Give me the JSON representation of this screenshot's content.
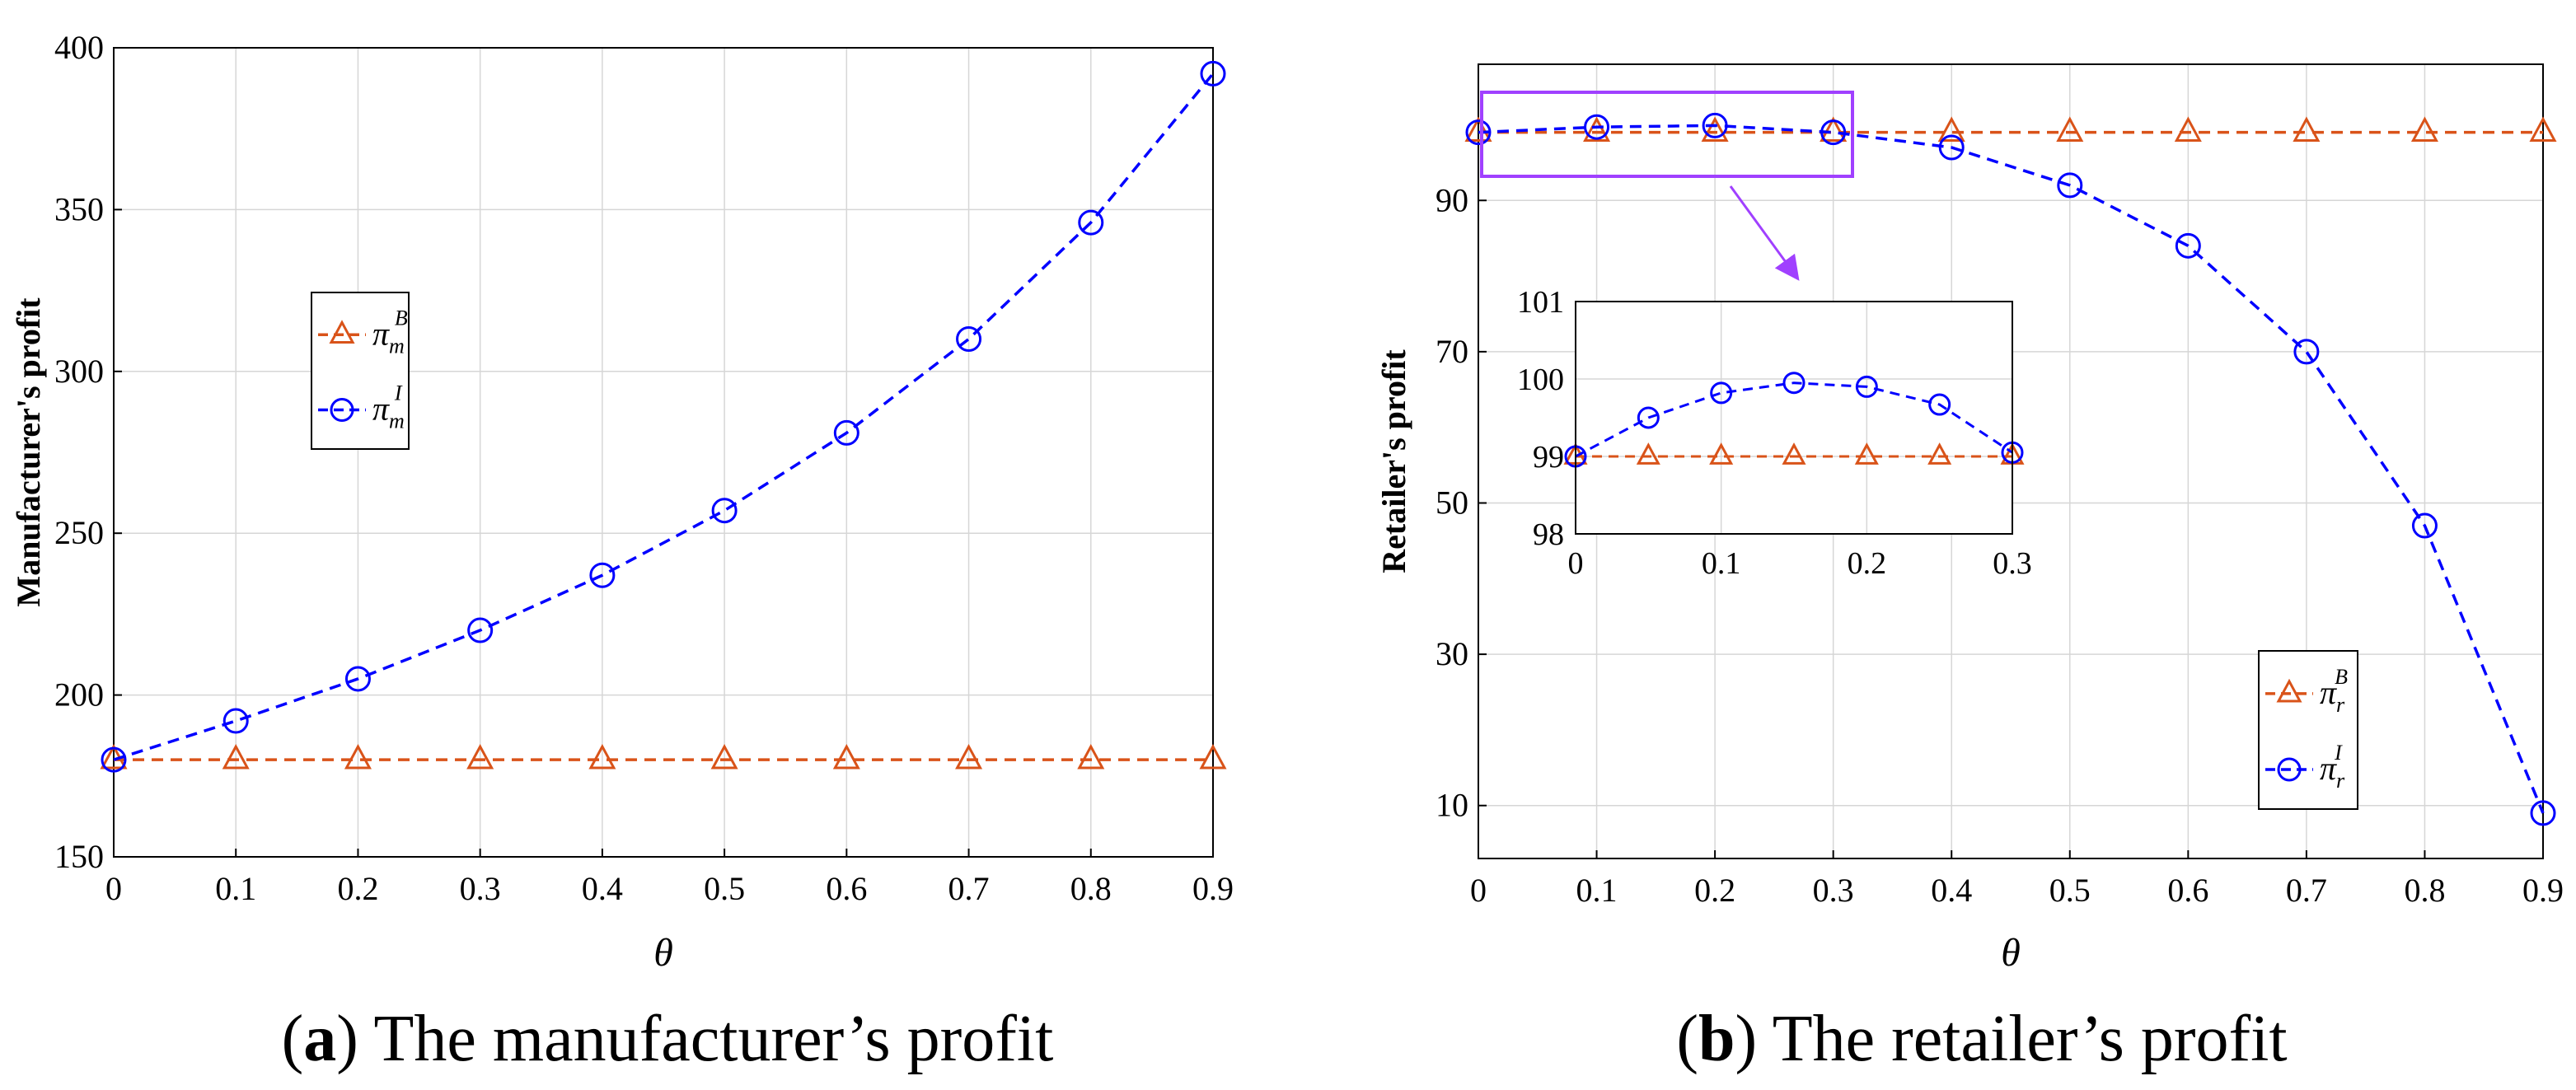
{
  "chart_data": [
    {
      "id": "a",
      "type": "line",
      "caption_letter": "a",
      "caption_text": "The manufacturer’s profit",
      "xlabel": "θ",
      "ylabel": "Manufacturer's  profit",
      "xlim": [
        0,
        0.9
      ],
      "ylim": [
        150,
        400
      ],
      "xticks": [
        0,
        0.1,
        0.2,
        0.3,
        0.4,
        0.5,
        0.6,
        0.7,
        0.8,
        0.9
      ],
      "yticks": [
        150,
        200,
        250,
        300,
        350,
        400
      ],
      "grid": true,
      "x": [
        0,
        0.1,
        0.2,
        0.3,
        0.4,
        0.5,
        0.6,
        0.7,
        0.8,
        0.9
      ],
      "series": [
        {
          "key": "B",
          "sym": "π",
          "sub": "m",
          "sup": "B",
          "color": "#d95319",
          "marker": "triangle",
          "values": [
            180,
            180,
            180,
            180,
            180,
            180,
            180,
            180,
            180,
            180
          ]
        },
        {
          "key": "I",
          "sym": "π",
          "sub": "m",
          "sup": "I",
          "color": "#0000ff",
          "marker": "circle",
          "values": [
            180,
            192,
            205,
            220,
            237,
            257,
            281,
            310,
            346,
            392
          ]
        }
      ],
      "legend_position": "center-left"
    },
    {
      "id": "b",
      "type": "line",
      "caption_letter": "b",
      "caption_text": "The retailer’s profit",
      "xlabel": "θ",
      "ylabel": "Retailer's  profit",
      "xlim": [
        0,
        0.9
      ],
      "ylim": [
        3,
        108
      ],
      "xticks": [
        0,
        0.1,
        0.2,
        0.3,
        0.4,
        0.5,
        0.6,
        0.7,
        0.8,
        0.9
      ],
      "yticks": [
        10,
        30,
        50,
        70,
        90
      ],
      "grid": true,
      "x": [
        0,
        0.1,
        0.2,
        0.3,
        0.4,
        0.5,
        0.6,
        0.7,
        0.8,
        0.9
      ],
      "series": [
        {
          "key": "B",
          "sym": "π",
          "sub": "r",
          "sup": "B",
          "color": "#d95319",
          "marker": "triangle",
          "values": [
            99,
            99,
            99,
            99,
            99,
            99,
            99,
            99,
            99,
            99
          ]
        },
        {
          "key": "I",
          "sym": "π",
          "sub": "r",
          "sup": "I",
          "color": "#0000ff",
          "marker": "circle",
          "values": [
            99,
            99.7,
            99.9,
            99,
            97,
            92,
            84,
            70,
            47,
            9
          ]
        }
      ],
      "legend_position": "bottom-right",
      "highlight_color": "#a040ff",
      "inset": {
        "xlim": [
          0,
          0.3
        ],
        "ylim": [
          98,
          101
        ],
        "xticks": [
          0,
          0.1,
          0.2,
          0.3
        ],
        "yticks": [
          98,
          99,
          100,
          101
        ],
        "x": [
          0,
          0.05,
          0.1,
          0.15,
          0.2,
          0.25,
          0.3
        ],
        "series": [
          {
            "key": "B",
            "values": [
              99,
              99,
              99,
              99,
              99,
              99,
              99
            ]
          },
          {
            "key": "I",
            "values": [
              99,
              99.5,
              99.82,
              99.95,
              99.9,
              99.67,
              99.05
            ]
          }
        ]
      }
    }
  ]
}
